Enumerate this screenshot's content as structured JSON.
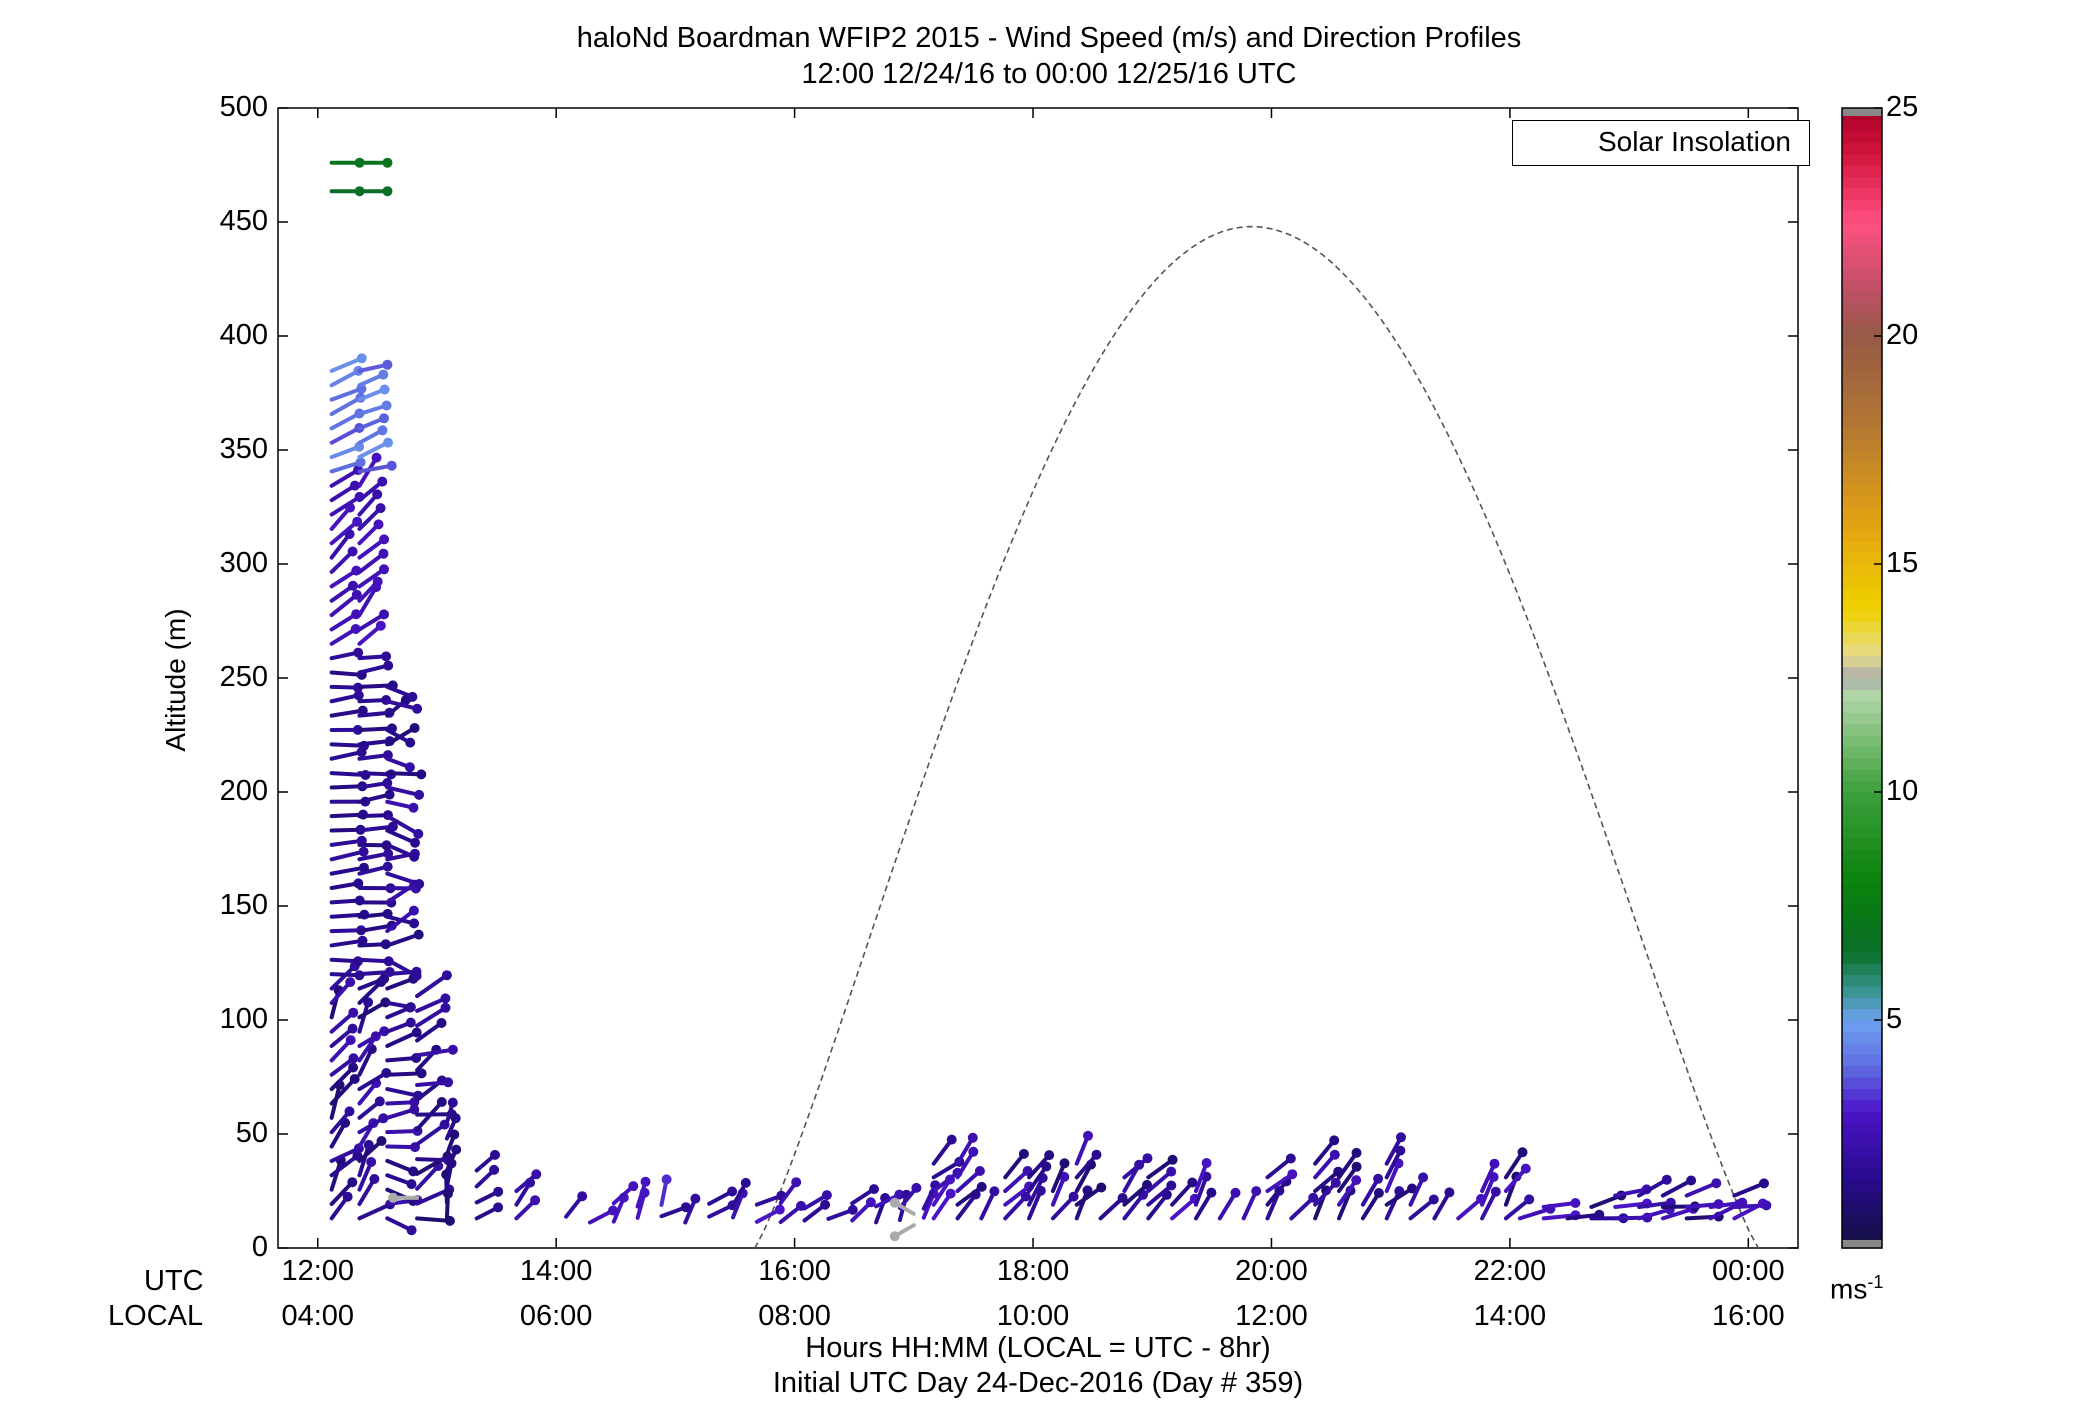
{
  "title": "haloNd Boardman WFIP2 2015 - Wind Speed (m/s) and Direction Profiles",
  "subtitle": "12:00 12/24/16 to 00:00 12/25/16  UTC",
  "ylabel": "Altitude (m)",
  "xlabel": "Hours HH:MM  (LOCAL = UTC - 8hr)",
  "xlabel2": "Initial UTC Day 24-Dec-2016 (Day # 359)",
  "row_label_utc": "UTC",
  "row_label_local": "LOCAL",
  "legend": {
    "label": "Solar Insolation"
  },
  "colorbar": {
    "unit_label": "ms",
    "unit_exp": "-1",
    "ticks": [
      "5",
      "10",
      "15",
      "20",
      "25"
    ],
    "range": [
      0,
      25
    ]
  },
  "chart_data": {
    "type": "scatter",
    "title": "haloNd Boardman WFIP2 2015 - Wind Speed (m/s) and Direction Profiles",
    "xlabel": "Hours HH:MM  (LOCAL = UTC - 8hr)",
    "ylabel": "Altitude (m)",
    "xlim": [
      "11:40",
      "00:25"
    ],
    "ylim": [
      0,
      500
    ],
    "y_ticks": [
      "0",
      "50",
      "100",
      "150",
      "200",
      "250",
      "300",
      "350",
      "400",
      "450",
      "500"
    ],
    "x_ticks_utc": [
      "12:00",
      "14:00",
      "16:00",
      "18:00",
      "20:00",
      "22:00",
      "00:00"
    ],
    "x_ticks_local": [
      "04:00",
      "06:00",
      "08:00",
      "10:00",
      "12:00",
      "14:00",
      "16:00"
    ],
    "colorscale": "wind speed (ms-1)",
    "solar_insolation_curve": {
      "start": "15:40",
      "peak": "19:50",
      "end": "00:05",
      "peak_altitude_axis": 448
    },
    "wind_profiles": [
      {
        "time": "12:07",
        "top_alt": 476,
        "note": "upper levels 5-7 m/s, lower levels ~1-3 m/s"
      },
      {
        "time": "12:21",
        "top_alt": 476
      },
      {
        "time": "12:35",
        "top_alt": 248
      },
      {
        "time": "12:50",
        "top_alt": 115
      },
      {
        "time": "13:05",
        "top_alt": 60
      },
      {
        "time": "13:20",
        "top_alt": 37
      },
      {
        "time": "13:40",
        "top_alt": 25
      },
      {
        "time": "14:00 to 16:00",
        "top_alt": 20
      },
      {
        "time": "16:00 to 17:10",
        "top_alt": 18
      },
      {
        "time": "17:10 to 22:00",
        "top_alt": 43
      },
      {
        "time": "22:00 to 00:05",
        "top_alt": 25
      }
    ]
  }
}
